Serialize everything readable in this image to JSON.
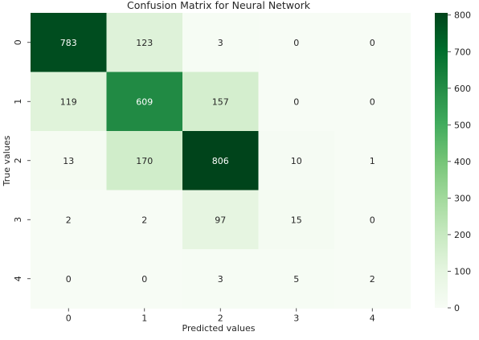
{
  "chart_data": {
    "type": "heatmap",
    "title": "Confusion Matrix for Neural Network",
    "xlabel": "Predicted values",
    "ylabel": "True values",
    "x_categories": [
      "0",
      "1",
      "2",
      "3",
      "4"
    ],
    "y_categories": [
      "0",
      "1",
      "2",
      "3",
      "4"
    ],
    "values": [
      [
        783,
        123,
        3,
        0,
        0
      ],
      [
        119,
        609,
        157,
        0,
        0
      ],
      [
        13,
        170,
        806,
        10,
        1
      ],
      [
        2,
        2,
        97,
        15,
        0
      ],
      [
        0,
        0,
        3,
        5,
        2
      ]
    ],
    "colormap": "Greens",
    "color_low": "#f7fcf5",
    "color_high": "#00441b",
    "colorbar": {
      "range": [
        0,
        806
      ],
      "ticks": [
        "0",
        "100",
        "200",
        "300",
        "400",
        "500",
        "600",
        "700",
        "800"
      ]
    },
    "annotated": true,
    "grid": false
  }
}
